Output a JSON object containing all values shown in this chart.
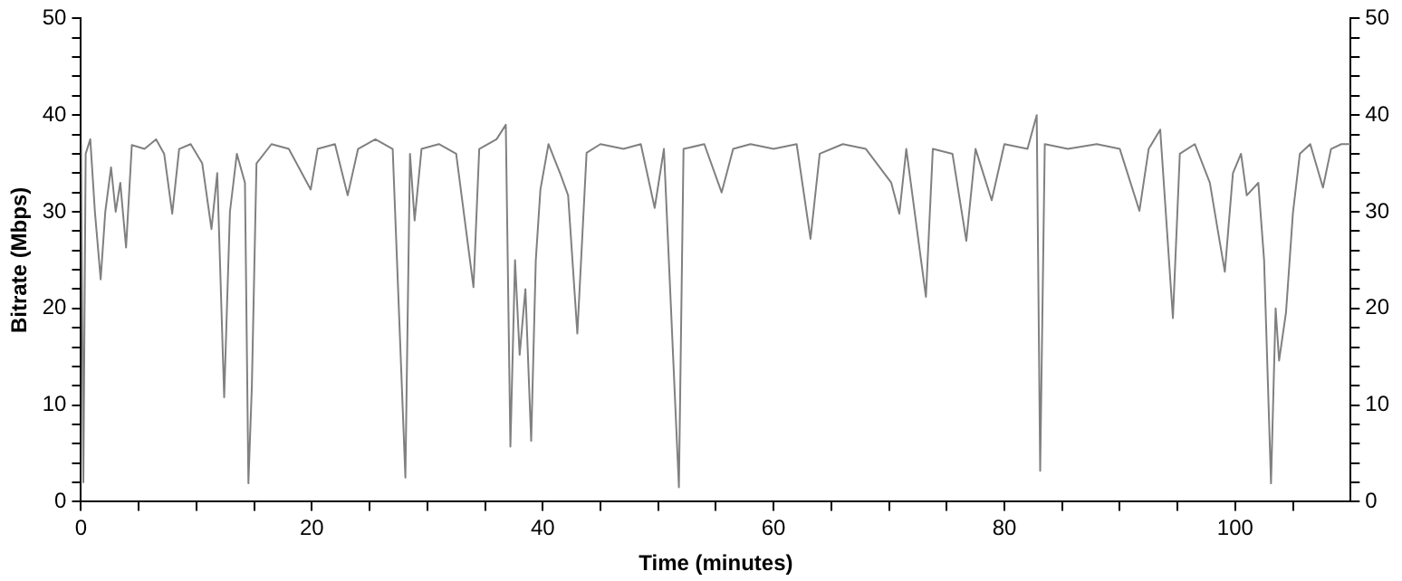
{
  "chart_data": {
    "type": "line",
    "xlabel": "Time (minutes)",
    "ylabel": "Bitrate (Mbps)",
    "color": "#808080",
    "marker": "none",
    "x": [
      0,
      0.2,
      0.4,
      0.8,
      1.2,
      1.7,
      2.1,
      2.6,
      3.0,
      3.4,
      3.9,
      4.4,
      5.5,
      6.5,
      7.2,
      7.9,
      8.5,
      9.5,
      10.5,
      11.3,
      11.8,
      12.4,
      12.9,
      13.5,
      14.2,
      14.5,
      14.8,
      15.2,
      16.5,
      18,
      19.9,
      20.5,
      22,
      23.1,
      24,
      25.5,
      27,
      28.1,
      28.5,
      28.9,
      29.5,
      31,
      32.5,
      34.0,
      34.5,
      36,
      36.8,
      37.2,
      37.6,
      38.0,
      38.5,
      39.0,
      39.4,
      39.8,
      40.5,
      41.5,
      42.2,
      43.0,
      43.8,
      45,
      47,
      48.5,
      49.7,
      50.5,
      51.8,
      52.2,
      54,
      55.5,
      56.5,
      58,
      60,
      62,
      63.2,
      64,
      66,
      68,
      70.2,
      70.9,
      71.5,
      73.2,
      73.8,
      75.5,
      76.7,
      77.5,
      78.9,
      80,
      82,
      82.8,
      83.1,
      83.5,
      85.5,
      88,
      90,
      91.7,
      92.5,
      93.5,
      94.6,
      95.2,
      96.5,
      97.8,
      98.5,
      99.1,
      99.8,
      100.5,
      101,
      102,
      102.5,
      103.1,
      103.5,
      103.8,
      104.4,
      105,
      105.6,
      106.5,
      107.6,
      108.3,
      109.2,
      110
    ],
    "values": [
      37,
      2,
      36,
      37.5,
      30,
      23,
      30,
      34.6,
      30,
      33,
      26.3,
      36.9,
      36.5,
      37.5,
      36,
      29.8,
      36.5,
      37,
      35,
      28.2,
      34,
      10.8,
      30,
      36,
      33,
      1.9,
      12,
      35,
      37,
      36.5,
      32.3,
      36.5,
      37,
      31.7,
      36.5,
      37.5,
      36.5,
      2.5,
      36,
      29.1,
      36.5,
      37,
      36,
      22.2,
      36.5,
      37.5,
      39,
      5.7,
      25,
      15.2,
      22,
      6.3,
      25,
      32.3,
      37,
      34,
      31.7,
      17.4,
      36.1,
      37,
      36.5,
      37,
      30.4,
      36.5,
      1.5,
      36.5,
      37,
      32,
      36.5,
      37,
      36.5,
      37,
      27.2,
      36,
      37,
      36.5,
      33,
      29.8,
      36.5,
      21.2,
      36.5,
      36,
      27.0,
      36.5,
      31.2,
      37,
      36.5,
      40,
      3.2,
      37,
      36.5,
      37,
      36.5,
      30.1,
      36.5,
      38.5,
      19,
      36,
      37,
      33,
      28,
      23.8,
      34,
      36,
      31.7,
      33,
      25,
      1.9,
      20,
      14.6,
      19.6,
      29.9,
      36,
      37,
      32.5,
      36.5,
      37,
      37
    ],
    "xlim": [
      0,
      110
    ],
    "xticks": [
      0,
      {
        "value": 5,
        "label": null
      },
      20,
      {
        "value": 10,
        "label": null
      },
      {
        "value": 15,
        "label": null
      },
      {
        "value": 25,
        "label": null
      },
      {
        "value": 30,
        "label": null
      },
      {
        "value": 35,
        "label": null
      },
      40,
      {
        "value": 45,
        "label": null
      },
      {
        "value": 50,
        "label": null
      },
      {
        "value": 55,
        "label": null
      },
      60,
      {
        "value": 65,
        "label": null
      },
      {
        "value": 70,
        "label": null
      },
      {
        "value": 75,
        "label": null
      },
      80,
      {
        "value": 85,
        "label": null
      },
      {
        "value": 90,
        "label": null
      },
      {
        "value": 95,
        "label": null
      },
      100,
      {
        "value": 105,
        "label": null
      }
    ],
    "ylim": [
      0,
      50
    ],
    "yticks": [
      0,
      10,
      20,
      30,
      40,
      50,
      {
        "value": 2,
        "label": null
      },
      {
        "value": 4,
        "label": null
      },
      {
        "value": 6,
        "label": null
      },
      {
        "value": 8,
        "label": null
      },
      {
        "value": 12,
        "label": null
      },
      {
        "value": 14,
        "label": null
      },
      {
        "value": 16,
        "label": null
      },
      {
        "value": 18,
        "label": null
      },
      {
        "value": 22,
        "label": null
      },
      {
        "value": 24,
        "label": null
      },
      {
        "value": 26,
        "label": null
      },
      {
        "value": 28,
        "label": null
      },
      {
        "value": 32,
        "label": null
      },
      {
        "value": 34,
        "label": null
      },
      {
        "value": 36,
        "label": null
      },
      {
        "value": 38,
        "label": null
      },
      {
        "value": 42,
        "label": null
      },
      {
        "value": 44,
        "label": null
      },
      {
        "value": 46,
        "label": null
      },
      {
        "value": 48,
        "label": null
      }
    ],
    "y2lim": [
      0,
      50
    ],
    "y2ticks": [
      0,
      10,
      20,
      30,
      40,
      50,
      {
        "value": 2,
        "label": null
      },
      {
        "value": 4,
        "label": null
      },
      {
        "value": 6,
        "label": null
      },
      {
        "value": 8,
        "label": null
      },
      {
        "value": 12,
        "label": null
      },
      {
        "value": 14,
        "label": null
      },
      {
        "value": 16,
        "label": null
      },
      {
        "value": 18,
        "label": null
      },
      {
        "value": 22,
        "label": null
      },
      {
        "value": 24,
        "label": null
      },
      {
        "value": 26,
        "label": null
      },
      {
        "value": 28,
        "label": null
      },
      {
        "value": 32,
        "label": null
      },
      {
        "value": 34,
        "label": null
      },
      {
        "value": 36,
        "label": null
      },
      {
        "value": 38,
        "label": null
      },
      {
        "value": 42,
        "label": null
      },
      {
        "value": 44,
        "label": null
      },
      {
        "value": 46,
        "label": null
      },
      {
        "value": 48,
        "label": null
      }
    ],
    "grid": false,
    "legend": false,
    "line_style": "solid"
  }
}
